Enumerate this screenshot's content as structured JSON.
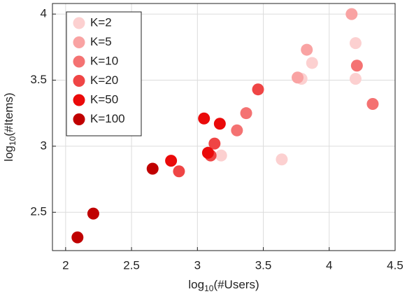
{
  "chart_data": {
    "type": "scatter",
    "xlabel": {
      "base": "log",
      "sub": "10",
      "rest": "(#Users)"
    },
    "ylabel": {
      "base": "log",
      "sub": "10",
      "rest": "(#Items)"
    },
    "xlim": [
      1.9,
      4.5
    ],
    "ylim": [
      2.21,
      4.08
    ],
    "xticks": [
      2,
      2.5,
      3,
      3.5,
      4,
      4.5
    ],
    "yticks": [
      2.5,
      3,
      3.5,
      4
    ],
    "grid": true,
    "legend": "upper left",
    "series": [
      {
        "name": "K=2",
        "color": "#fcd0d0",
        "x": [
          4.2,
          3.87,
          3.79,
          4.2,
          3.64,
          3.18
        ],
        "values": [
          3.78,
          3.63,
          3.51,
          3.51,
          2.9,
          2.93
        ]
      },
      {
        "name": "K=5",
        "color": "#f9a3a3",
        "x": [
          3.83,
          3.76,
          4.17
        ],
        "values": [
          3.73,
          3.52,
          4.0
        ]
      },
      {
        "name": "K=10",
        "color": "#f47272",
        "x": [
          4.21,
          4.33,
          3.37,
          3.3
        ],
        "values": [
          3.61,
          3.32,
          3.25,
          3.12
        ]
      },
      {
        "name": "K=20",
        "color": "#ef4545",
        "x": [
          3.46,
          3.13,
          3.1,
          2.86
        ],
        "values": [
          3.43,
          3.02,
          2.93,
          2.81
        ]
      },
      {
        "name": "K=50",
        "color": "#ea0a0a",
        "x": [
          3.05,
          3.17,
          3.08,
          2.8
        ],
        "values": [
          3.21,
          3.17,
          2.95,
          2.89
        ]
      },
      {
        "name": "K=100",
        "color": "#c00000",
        "x": [
          2.66,
          2.21,
          2.09
        ],
        "values": [
          2.83,
          2.49,
          2.31
        ]
      }
    ]
  }
}
